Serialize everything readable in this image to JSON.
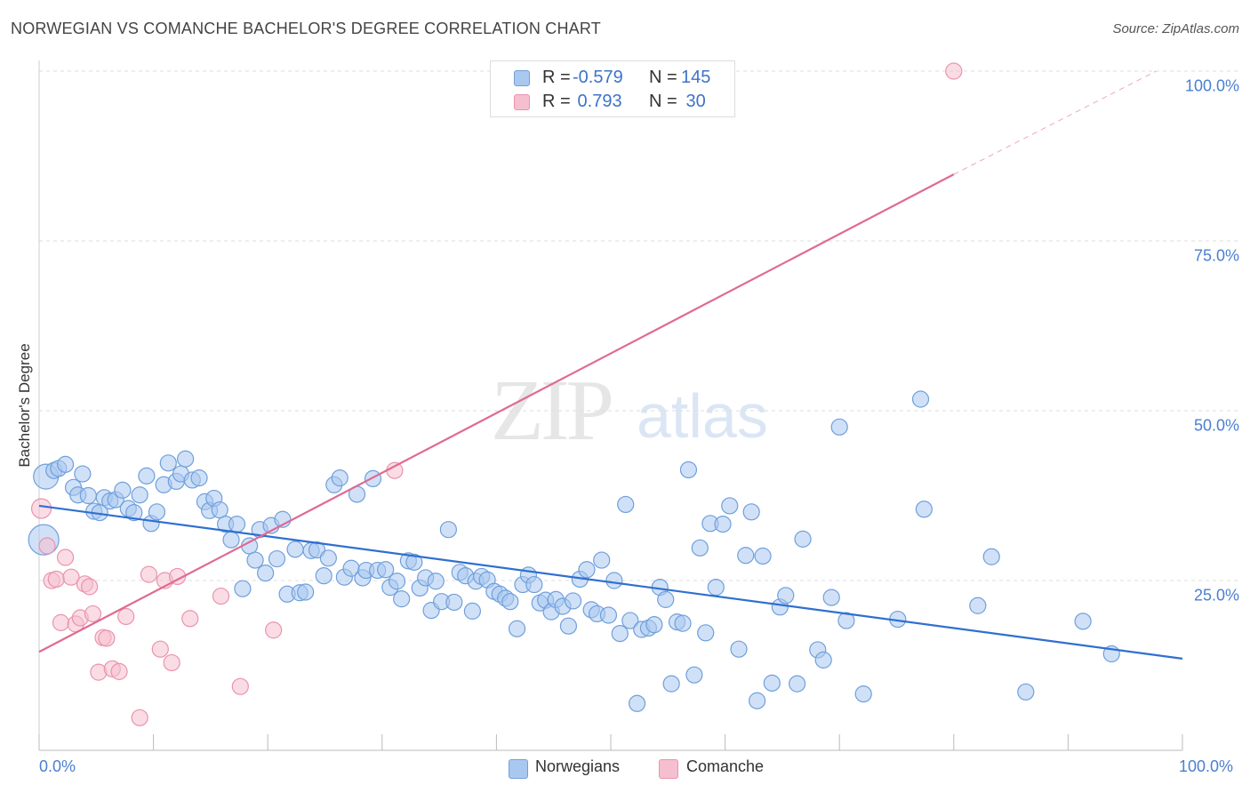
{
  "title": "NORWEGIAN VS COMANCHE BACHELOR'S DEGREE CORRELATION CHART",
  "source": "Source: ZipAtlas.com",
  "watermark": {
    "part1": "ZIP",
    "part2": "atlas"
  },
  "colors": {
    "blue_fill": "#a9c8f0",
    "blue_stroke": "#6f9fdc",
    "blue_line": "#2f6fd0",
    "pink_fill": "#f6bfd0",
    "pink_stroke": "#ea93ad",
    "pink_line": "#e06a92",
    "tick_text": "#4a7fd0",
    "grid": "#dddddd"
  },
  "legend": {
    "rows": [
      {
        "r_label": "R = ",
        "r_value": "-0.579",
        "n_label": "N = ",
        "n_value": "145",
        "color": "#a9c8f0"
      },
      {
        "r_label": "R = ",
        "r_value": " 0.793",
        "n_label": "N = ",
        "n_value": " 30",
        "color": "#f6bfd0"
      }
    ]
  },
  "bottom_legend": [
    {
      "label": "Norwegians",
      "color": "#a9c8f0"
    },
    {
      "label": "Comanche",
      "color": "#f6bfd0"
    }
  ],
  "chart_data": {
    "type": "scatter",
    "title": "NORWEGIAN VS COMANCHE BACHELOR'S DEGREE CORRELATION CHART",
    "xlabel": "",
    "ylabel": "Bachelor's Degree",
    "xlim": [
      0,
      100
    ],
    "ylim": [
      0,
      100
    ],
    "x_tick_labels": [
      "0.0%",
      "100.0%"
    ],
    "y_tick_labels": [
      "25.0%",
      "50.0%",
      "75.0%",
      "100.0%"
    ],
    "y_ticks": [
      25,
      50,
      75,
      100
    ],
    "grid": true,
    "legend_position": "top-center",
    "series": [
      {
        "name": "Norwegians",
        "r": -0.579,
        "n": 145,
        "trend": {
          "x0": 0,
          "y0": 36.0,
          "x1": 100,
          "y1": 13.5
        },
        "points": [
          [
            0.6,
            40.3
          ],
          [
            0.4,
            31.0
          ],
          [
            1.3,
            41.2
          ],
          [
            1.7,
            41.5
          ],
          [
            2.3,
            42.1
          ],
          [
            3.0,
            38.7
          ],
          [
            3.4,
            37.6
          ],
          [
            3.8,
            40.7
          ],
          [
            4.3,
            37.5
          ],
          [
            4.8,
            35.2
          ],
          [
            5.3,
            35.0
          ],
          [
            5.7,
            37.2
          ],
          [
            6.2,
            36.7
          ],
          [
            6.7,
            36.9
          ],
          [
            7.3,
            38.3
          ],
          [
            7.8,
            35.6
          ],
          [
            8.3,
            35.0
          ],
          [
            8.8,
            37.6
          ],
          [
            9.4,
            40.4
          ],
          [
            9.8,
            33.4
          ],
          [
            10.3,
            35.1
          ],
          [
            10.9,
            39.1
          ],
          [
            11.3,
            42.3
          ],
          [
            12.0,
            39.6
          ],
          [
            12.4,
            40.7
          ],
          [
            12.8,
            42.9
          ],
          [
            13.4,
            39.8
          ],
          [
            14.0,
            40.1
          ],
          [
            14.5,
            36.6
          ],
          [
            14.9,
            35.3
          ],
          [
            15.3,
            37.1
          ],
          [
            15.8,
            35.4
          ],
          [
            16.3,
            33.3
          ],
          [
            16.8,
            31.0
          ],
          [
            17.3,
            33.3
          ],
          [
            17.8,
            23.8
          ],
          [
            18.4,
            30.1
          ],
          [
            18.9,
            28.0
          ],
          [
            19.3,
            32.5
          ],
          [
            19.8,
            26.1
          ],
          [
            20.3,
            33.1
          ],
          [
            20.8,
            28.2
          ],
          [
            21.3,
            34.0
          ],
          [
            21.7,
            23.0
          ],
          [
            22.4,
            29.6
          ],
          [
            22.8,
            23.2
          ],
          [
            23.3,
            23.3
          ],
          [
            23.8,
            29.4
          ],
          [
            24.3,
            29.5
          ],
          [
            24.9,
            25.7
          ],
          [
            25.3,
            28.3
          ],
          [
            25.8,
            39.1
          ],
          [
            26.3,
            40.1
          ],
          [
            26.7,
            25.5
          ],
          [
            27.3,
            26.8
          ],
          [
            27.8,
            37.7
          ],
          [
            28.3,
            25.4
          ],
          [
            28.6,
            26.5
          ],
          [
            29.2,
            40.0
          ],
          [
            29.6,
            26.5
          ],
          [
            30.3,
            26.6
          ],
          [
            30.7,
            24.0
          ],
          [
            31.3,
            24.9
          ],
          [
            31.7,
            22.3
          ],
          [
            32.3,
            27.9
          ],
          [
            32.8,
            27.7
          ],
          [
            33.3,
            23.9
          ],
          [
            33.8,
            25.4
          ],
          [
            34.3,
            20.6
          ],
          [
            34.7,
            24.9
          ],
          [
            35.2,
            21.9
          ],
          [
            35.8,
            32.5
          ],
          [
            36.3,
            21.8
          ],
          [
            36.8,
            26.2
          ],
          [
            37.3,
            25.7
          ],
          [
            37.9,
            20.5
          ],
          [
            38.2,
            24.9
          ],
          [
            38.7,
            25.6
          ],
          [
            39.2,
            25.1
          ],
          [
            39.8,
            23.4
          ],
          [
            40.3,
            23.0
          ],
          [
            40.8,
            22.4
          ],
          [
            41.2,
            21.9
          ],
          [
            41.8,
            17.9
          ],
          [
            42.3,
            24.4
          ],
          [
            42.8,
            25.8
          ],
          [
            43.3,
            24.4
          ],
          [
            43.8,
            21.7
          ],
          [
            44.3,
            22.1
          ],
          [
            44.8,
            20.4
          ],
          [
            45.2,
            22.2
          ],
          [
            45.8,
            21.2
          ],
          [
            46.3,
            18.3
          ],
          [
            46.7,
            22.0
          ],
          [
            47.3,
            25.2
          ],
          [
            47.9,
            26.6
          ],
          [
            48.3,
            20.7
          ],
          [
            48.8,
            20.1
          ],
          [
            49.2,
            28.0
          ],
          [
            49.8,
            19.9
          ],
          [
            50.3,
            25.0
          ],
          [
            50.8,
            17.2
          ],
          [
            51.3,
            36.2
          ],
          [
            51.7,
            19.1
          ],
          [
            52.3,
            6.9
          ],
          [
            52.7,
            17.8
          ],
          [
            53.3,
            18.0
          ],
          [
            53.8,
            18.5
          ],
          [
            54.3,
            24.0
          ],
          [
            54.8,
            22.2
          ],
          [
            55.3,
            9.8
          ],
          [
            55.8,
            18.9
          ],
          [
            56.3,
            18.7
          ],
          [
            56.8,
            41.3
          ],
          [
            57.3,
            11.1
          ],
          [
            57.8,
            29.8
          ],
          [
            58.3,
            17.3
          ],
          [
            58.7,
            33.4
          ],
          [
            59.2,
            24.0
          ],
          [
            59.8,
            33.3
          ],
          [
            60.4,
            36.0
          ],
          [
            61.2,
            14.9
          ],
          [
            61.8,
            28.7
          ],
          [
            62.3,
            35.1
          ],
          [
            62.8,
            7.3
          ],
          [
            63.3,
            28.6
          ],
          [
            64.1,
            9.9
          ],
          [
            64.8,
            21.1
          ],
          [
            65.3,
            22.8
          ],
          [
            66.3,
            9.8
          ],
          [
            66.8,
            31.1
          ],
          [
            68.1,
            14.8
          ],
          [
            68.6,
            13.3
          ],
          [
            69.3,
            22.5
          ],
          [
            70.0,
            47.6
          ],
          [
            70.6,
            19.1
          ],
          [
            77.1,
            51.7
          ],
          [
            72.1,
            8.3
          ],
          [
            75.1,
            19.3
          ],
          [
            77.4,
            35.5
          ],
          [
            82.1,
            21.3
          ],
          [
            83.3,
            28.5
          ],
          [
            86.3,
            8.6
          ],
          [
            91.3,
            19.0
          ],
          [
            93.8,
            14.2
          ]
        ]
      },
      {
        "name": "Comanche",
        "r": 0.793,
        "n": 30,
        "trend": {
          "x0": 0,
          "y0": 14.5,
          "x1": 80,
          "y1": 84.8,
          "dashed_to": {
            "x": 97.7,
            "y": 100
          }
        },
        "points": [
          [
            0.2,
            35.6
          ],
          [
            0.7,
            30.1
          ],
          [
            1.1,
            25.0
          ],
          [
            1.5,
            25.2
          ],
          [
            1.9,
            18.8
          ],
          [
            2.3,
            28.4
          ],
          [
            2.8,
            25.5
          ],
          [
            3.2,
            18.6
          ],
          [
            3.6,
            19.5
          ],
          [
            4.0,
            24.5
          ],
          [
            4.4,
            24.1
          ],
          [
            4.7,
            20.1
          ],
          [
            5.2,
            11.5
          ],
          [
            5.6,
            16.6
          ],
          [
            5.9,
            16.5
          ],
          [
            6.4,
            12.0
          ],
          [
            7.0,
            11.6
          ],
          [
            7.6,
            19.7
          ],
          [
            8.8,
            4.8
          ],
          [
            9.6,
            25.9
          ],
          [
            10.6,
            14.9
          ],
          [
            11.0,
            25.0
          ],
          [
            11.6,
            12.9
          ],
          [
            12.1,
            25.6
          ],
          [
            13.2,
            19.4
          ],
          [
            15.9,
            22.7
          ],
          [
            17.6,
            9.4
          ],
          [
            20.5,
            17.7
          ],
          [
            31.1,
            41.2
          ],
          [
            80.0,
            100.0
          ]
        ]
      }
    ]
  }
}
